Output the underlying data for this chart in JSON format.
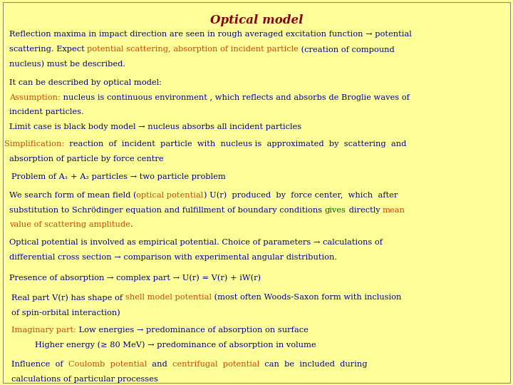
{
  "title": "Optical model",
  "background_color": "#FFFF99",
  "title_color": "#8B0000",
  "dark_blue": "#00008B",
  "orange_red": "#CC4400",
  "green": "#006400",
  "figsize": [
    7.2,
    5.4
  ],
  "dpi": 100,
  "fs_title": 12,
  "fs_main": 8.2,
  "lh": 0.0385
}
